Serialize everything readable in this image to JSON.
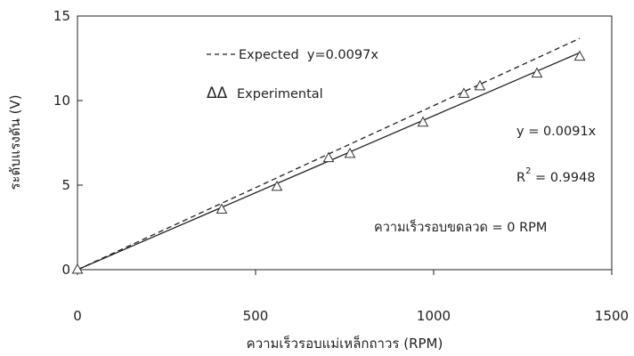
{
  "chart_data": {
    "type": "scatter",
    "xlabel": "ความเร็วรอบแม่เหล็กถาวร (RPM)",
    "ylabel": "ระดับแรงดัน (V)",
    "xlim": [
      0,
      1500
    ],
    "ylim": [
      0,
      15
    ],
    "x_ticks": [
      0,
      500,
      1000,
      1500
    ],
    "y_ticks": [
      0,
      5,
      10,
      15
    ],
    "grid": false,
    "series": [
      {
        "name": "Experimental",
        "marker": "triangle-open",
        "x": [
          0,
          405,
          560,
          705,
          765,
          970,
          1085,
          1130,
          1290,
          1410
        ],
        "y": [
          0,
          3.55,
          4.9,
          6.6,
          6.85,
          8.7,
          10.4,
          10.85,
          11.6,
          12.6
        ]
      }
    ],
    "lines": [
      {
        "name": "Expected",
        "style": "dashed",
        "slope": 0.0097,
        "x_end": 1410
      },
      {
        "name": "fit",
        "style": "solid",
        "slope": 0.0091,
        "x_end": 1410
      }
    ],
    "annotations": {
      "expected_legend": "Expected  y=0.0097x",
      "experimental_legend_symbol": "ΔΔ",
      "experimental_legend": "Experimental",
      "fit_eq": "y = 0.0091x",
      "r2_prefix": "R",
      "r2_sup": "2",
      "r2_value": " = 0.9948",
      "condition": "ความเร็วรอบขดลวด = 0 RPM"
    },
    "colors": {
      "ink": "#222222",
      "marker": "#333333"
    }
  }
}
